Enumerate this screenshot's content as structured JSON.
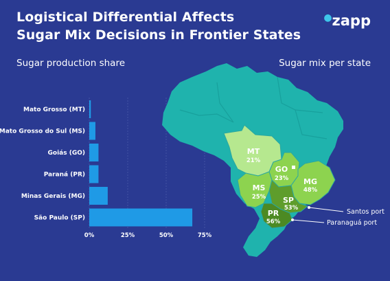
{
  "header": {
    "title_line1": "Logistical Differential Affects",
    "title_line2": "Sugar Mix Decisions in Frontier States",
    "logo_text": "zapp"
  },
  "colors": {
    "background": "#2a3a92",
    "bar": "#1f9ae6",
    "map_base": "#1fb3ad",
    "state_light": "#b6e88f",
    "state_mid": "#8dd34f",
    "state_dark": "#5e9d2b",
    "state_darker": "#4c8a23"
  },
  "chart_data": [
    {
      "type": "bar",
      "orientation": "horizontal",
      "title": "Sugar production share",
      "categories": [
        "Mato Grosso (MT)",
        "Mato Grosso do Sul (MS)",
        "Goiás (GO)",
        "Paraná (PR)",
        "Minas Gerais (MG)",
        "São Paulo (SP)"
      ],
      "values": [
        1,
        4,
        6,
        6,
        12,
        67
      ],
      "xlim": [
        0,
        75
      ],
      "ticks": [
        "0%",
        "25%",
        "50%",
        "75%"
      ],
      "tick_values": [
        0,
        25,
        50,
        75
      ],
      "grid": true
    },
    {
      "type": "map",
      "title": "Sugar mix per state",
      "states": [
        {
          "code": "MT",
          "value": "21%"
        },
        {
          "code": "GO",
          "value": "23%"
        },
        {
          "code": "MG",
          "value": "48%"
        },
        {
          "code": "MS",
          "value": "25%"
        },
        {
          "code": "SP",
          "value": "53%"
        },
        {
          "code": "PR",
          "value": "56%"
        }
      ],
      "ports": [
        "Santos port",
        "Paranaguá port"
      ]
    }
  ]
}
